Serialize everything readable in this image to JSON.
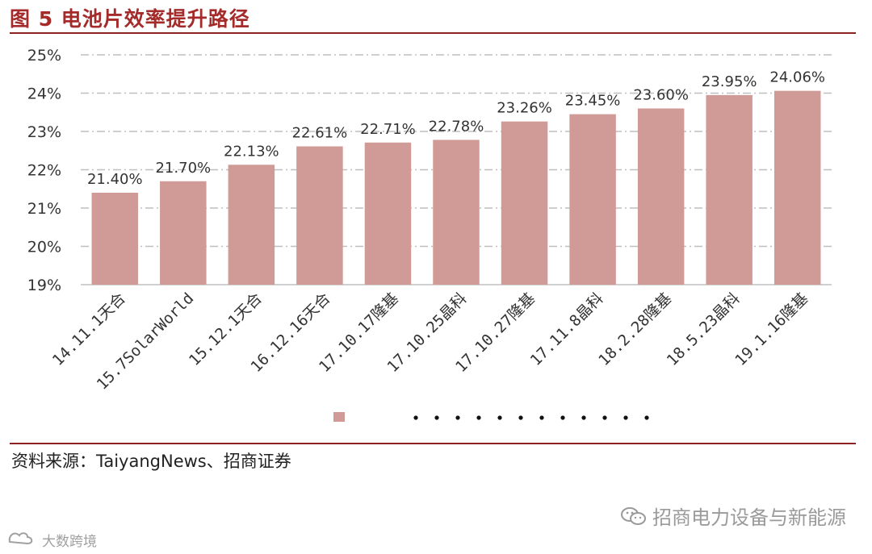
{
  "figure_title": "图 5 电池片效率提升路径",
  "source_text": "资料来源：TaiyangNews、招商证券",
  "watermark_text": "招商电力设备与新能源",
  "corner_mark_text": "大数跨境",
  "colors": {
    "bar": "#d09a96",
    "title": "#a52a2a",
    "rule": "#8b2323",
    "grid": "#bfbfbf"
  },
  "chart_data": {
    "type": "bar",
    "categories": [
      "14.11.1天合",
      "15.7SolarWorld",
      "15.12.1天合",
      "16.12.16天合",
      "17.10.17隆基",
      "17.10.25晶科",
      "17.10.27隆基",
      "17.11.8晶科",
      "18.2.28隆基",
      "18.5.23晶科",
      "19.1.16隆基"
    ],
    "values": [
      21.4,
      21.7,
      22.13,
      22.61,
      22.71,
      22.78,
      23.26,
      23.45,
      23.6,
      23.95,
      24.06
    ],
    "data_labels": [
      "21.40%",
      "21.70%",
      "22.13%",
      "22.61%",
      "22.71%",
      "22.78%",
      "23.26%",
      "23.45%",
      "23.60%",
      "23.95%",
      "24.06%"
    ],
    "ylim": [
      19,
      25
    ],
    "yticks": [
      19,
      20,
      21,
      22,
      23,
      24,
      25
    ],
    "ytick_labels": [
      "19%",
      "20%",
      "21%",
      "22%",
      "23%",
      "24%",
      "25%"
    ],
    "grid": true,
    "legend": {
      "placement": "bottom",
      "entries": [
        {
          "marker": "bar",
          "label": ""
        },
        {
          "marker": "dotted-line",
          "label": ""
        }
      ]
    }
  }
}
